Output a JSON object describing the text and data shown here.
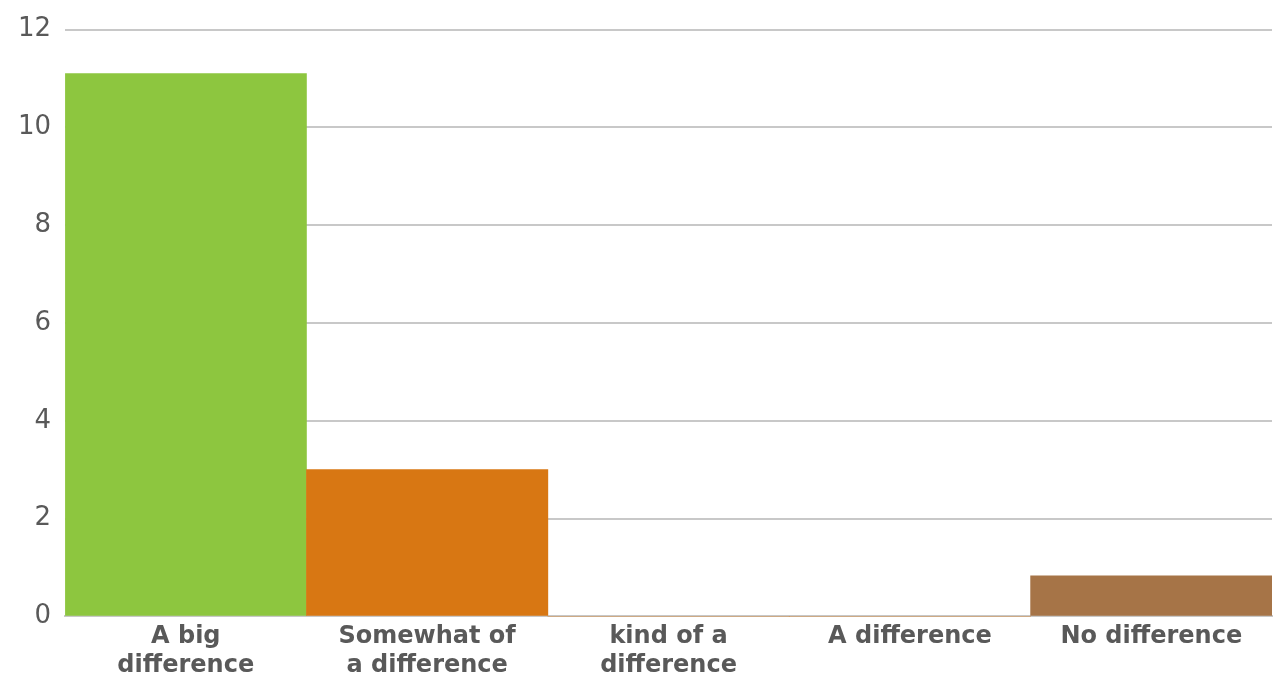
{
  "chart_data": {
    "type": "bar",
    "categories": [
      "A big difference",
      "Somewhat of a difference",
      "kind of a difference",
      "A difference",
      "No difference"
    ],
    "values": [
      11.1,
      3,
      0,
      0,
      0.83
    ],
    "colors": [
      "#8dc63f",
      "#d87713",
      "#d87713",
      "#d87713",
      "#a67447"
    ],
    "ylim": [
      0,
      12
    ],
    "yticks": [
      0,
      2,
      4,
      6,
      8,
      10,
      12
    ],
    "grid": "y",
    "legend": false
  }
}
